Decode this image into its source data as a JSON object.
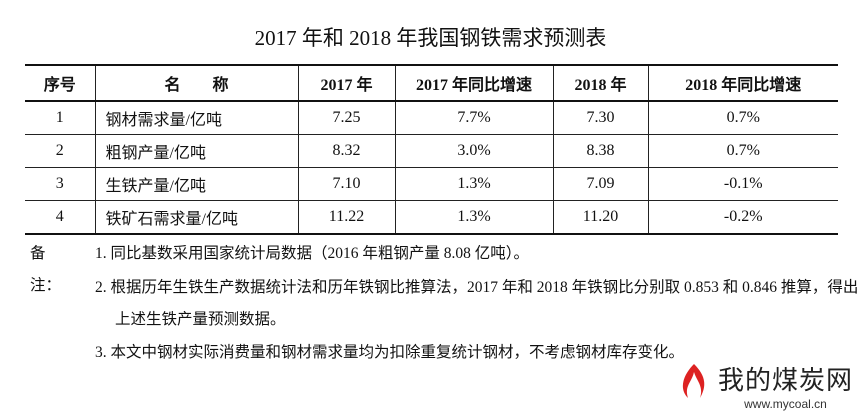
{
  "title": "2017 年和 2018 年我国钢铁需求预测表",
  "table": {
    "header": [
      "序号",
      "名　　称",
      "2017 年",
      "2017 年同比增速",
      "2018 年",
      "2018 年同比增速"
    ],
    "rows": [
      [
        "1",
        "钢材需求量/亿吨",
        "7.25",
        "7.7%",
        "7.30",
        "0.7%"
      ],
      [
        "2",
        "粗钢产量/亿吨",
        "8.32",
        "3.0%",
        "8.38",
        "0.7%"
      ],
      [
        "3",
        "生铁产量/亿吨",
        "7.10",
        "1.3%",
        "7.09",
        "-0.1%"
      ],
      [
        "4",
        "铁矿石需求量/亿吨",
        "11.22",
        "1.3%",
        "11.20",
        "-0.2%"
      ]
    ]
  },
  "notes": {
    "label": "备注：",
    "items": [
      "1. 同比基数采用国家统计局数据（2016 年粗钢产量 8.08 亿吨）。",
      "2. 根据历年生铁生产数据统计法和历年铁钢比推算法，2017 年和 2018 年铁钢比分别取 0.853 和 0.846 推算，得出上述生铁产量预测数据。",
      "3. 本文中钢材实际消费量和钢材需求量均为扣除重复统计钢材，不考虑钢材库存变化。"
    ]
  },
  "watermark": {
    "name": "我的煤炭网",
    "url": "www.mycoal.cn"
  }
}
